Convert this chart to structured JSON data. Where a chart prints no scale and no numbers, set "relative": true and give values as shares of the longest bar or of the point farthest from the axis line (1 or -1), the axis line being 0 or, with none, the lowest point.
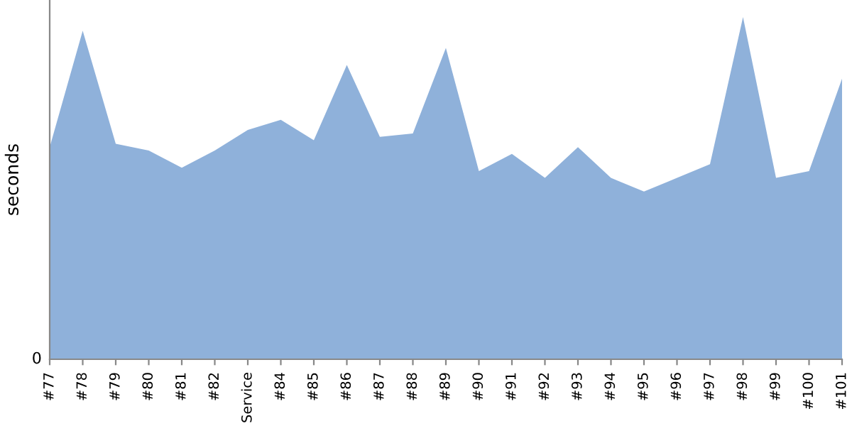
{
  "chart_data": {
    "type": "area",
    "ylabel": "seconds",
    "relative": true,
    "annotations": [
      "0"
    ],
    "grid": false,
    "legend": false,
    "categories": [
      "#77",
      "#78",
      "#79",
      "#80",
      "#81",
      "#82",
      "Service",
      "#84",
      "#85",
      "#86",
      "#87",
      "#88",
      "#89",
      "#90",
      "#91",
      "#92",
      "#93",
      "#94",
      "#95",
      "#96",
      "#97",
      "#98",
      "#99",
      "#100",
      "#101"
    ],
    "series": [
      {
        "color": "#8fb1da",
        "values": [
          0.62,
          0.96,
          0.63,
          0.61,
          0.56,
          0.61,
          0.67,
          0.7,
          0.64,
          0.86,
          0.65,
          0.66,
          0.91,
          0.55,
          0.6,
          0.53,
          0.62,
          0.53,
          0.49,
          0.53,
          0.57,
          1,
          0.53,
          0.55,
          0.82
        ]
      }
    ]
  }
}
